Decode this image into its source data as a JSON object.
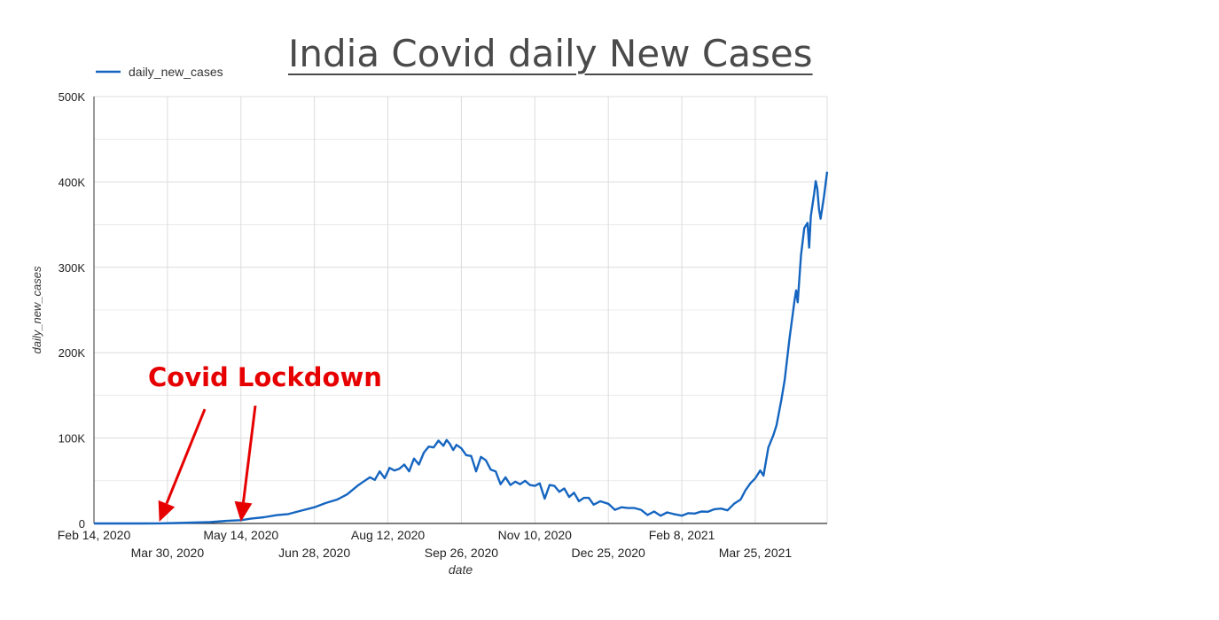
{
  "title": "India Covid daily New Cases",
  "chart_data": {
    "type": "line",
    "title": "India Covid daily New Cases",
    "xlabel": "date",
    "ylabel": "daily_new_cases",
    "x_start": "2020-02-14",
    "x_end": "2021-05-08",
    "ylim": [
      0,
      500000
    ],
    "y_ticks": [
      {
        "v": 0,
        "label": "0"
      },
      {
        "v": 100000,
        "label": "100K"
      },
      {
        "v": 200000,
        "label": "200K"
      },
      {
        "v": 300000,
        "label": "300K"
      },
      {
        "v": 400000,
        "label": "400K"
      },
      {
        "v": 500000,
        "label": "500K"
      }
    ],
    "x_ticks": [
      {
        "date": "2020-02-14",
        "label": "Feb 14, 2020",
        "row": 1
      },
      {
        "date": "2020-03-30",
        "label": "Mar 30, 2020",
        "row": 2
      },
      {
        "date": "2020-05-14",
        "label": "May 14, 2020",
        "row": 1
      },
      {
        "date": "2020-06-28",
        "label": "Jun 28, 2020",
        "row": 2
      },
      {
        "date": "2020-08-12",
        "label": "Aug 12, 2020",
        "row": 1
      },
      {
        "date": "2020-09-26",
        "label": "Sep 26, 2020",
        "row": 2
      },
      {
        "date": "2020-11-10",
        "label": "Nov 10, 2020",
        "row": 1
      },
      {
        "date": "2020-12-25",
        "label": "Dec 25, 2020",
        "row": 2
      },
      {
        "date": "2021-02-08",
        "label": "Feb 8, 2021",
        "row": 1
      },
      {
        "date": "2021-03-25",
        "label": "Mar 25, 2021",
        "row": 2
      }
    ],
    "grid": true,
    "legend": "top-left",
    "series": [
      {
        "name": "daily_new_cases",
        "color": "#1565c0",
        "points": [
          [
            "2020-02-14",
            0
          ],
          [
            "2020-03-01",
            0
          ],
          [
            "2020-03-15",
            50
          ],
          [
            "2020-03-25",
            100
          ],
          [
            "2020-04-05",
            500
          ],
          [
            "2020-04-15",
            1000
          ],
          [
            "2020-04-25",
            1600
          ],
          [
            "2020-05-05",
            3000
          ],
          [
            "2020-05-14",
            3800
          ],
          [
            "2020-05-20",
            5600
          ],
          [
            "2020-05-28",
            7300
          ],
          [
            "2020-06-05",
            9800
          ],
          [
            "2020-06-12",
            11000
          ],
          [
            "2020-06-20",
            15000
          ],
          [
            "2020-06-28",
            19000
          ],
          [
            "2020-07-05",
            24000
          ],
          [
            "2020-07-12",
            28000
          ],
          [
            "2020-07-18",
            34000
          ],
          [
            "2020-07-25",
            45000
          ],
          [
            "2020-07-28",
            49000
          ],
          [
            "2020-08-01",
            54000
          ],
          [
            "2020-08-04",
            51000
          ],
          [
            "2020-08-07",
            61000
          ],
          [
            "2020-08-10",
            53000
          ],
          [
            "2020-08-13",
            65000
          ],
          [
            "2020-08-16",
            62000
          ],
          [
            "2020-08-19",
            64000
          ],
          [
            "2020-08-22",
            69000
          ],
          [
            "2020-08-25",
            61000
          ],
          [
            "2020-08-28",
            76000
          ],
          [
            "2020-08-31",
            69000
          ],
          [
            "2020-09-03",
            83000
          ],
          [
            "2020-09-06",
            90000
          ],
          [
            "2020-09-09",
            89000
          ],
          [
            "2020-09-12",
            97000
          ],
          [
            "2020-09-15",
            91000
          ],
          [
            "2020-09-17",
            97800
          ],
          [
            "2020-09-19",
            93000
          ],
          [
            "2020-09-21",
            86000
          ],
          [
            "2020-09-23",
            92000
          ],
          [
            "2020-09-26",
            88000
          ],
          [
            "2020-09-29",
            80000
          ],
          [
            "2020-10-02",
            79000
          ],
          [
            "2020-10-05",
            61000
          ],
          [
            "2020-10-08",
            78000
          ],
          [
            "2020-10-11",
            74000
          ],
          [
            "2020-10-14",
            63000
          ],
          [
            "2020-10-17",
            61000
          ],
          [
            "2020-10-20",
            46000
          ],
          [
            "2020-10-23",
            54000
          ],
          [
            "2020-10-26",
            45000
          ],
          [
            "2020-10-29",
            49000
          ],
          [
            "2020-11-01",
            46000
          ],
          [
            "2020-11-04",
            50000
          ],
          [
            "2020-11-07",
            45000
          ],
          [
            "2020-11-10",
            44000
          ],
          [
            "2020-11-13",
            47000
          ],
          [
            "2020-11-16",
            29000
          ],
          [
            "2020-11-19",
            45000
          ],
          [
            "2020-11-22",
            44000
          ],
          [
            "2020-11-25",
            37000
          ],
          [
            "2020-11-28",
            41000
          ],
          [
            "2020-12-01",
            31000
          ],
          [
            "2020-12-04",
            36000
          ],
          [
            "2020-12-07",
            26000
          ],
          [
            "2020-12-10",
            30000
          ],
          [
            "2020-12-13",
            30000
          ],
          [
            "2020-12-16",
            22000
          ],
          [
            "2020-12-20",
            26000
          ],
          [
            "2020-12-25",
            23000
          ],
          [
            "2020-12-29",
            16000
          ],
          [
            "2021-01-02",
            19000
          ],
          [
            "2021-01-06",
            18000
          ],
          [
            "2021-01-10",
            18000
          ],
          [
            "2021-01-14",
            16000
          ],
          [
            "2021-01-18",
            10000
          ],
          [
            "2021-01-22",
            14000
          ],
          [
            "2021-01-26",
            9000
          ],
          [
            "2021-01-30",
            13000
          ],
          [
            "2021-02-03",
            11000
          ],
          [
            "2021-02-08",
            9100
          ],
          [
            "2021-02-12",
            12000
          ],
          [
            "2021-02-16",
            11600
          ],
          [
            "2021-02-20",
            14000
          ],
          [
            "2021-02-24",
            13700
          ],
          [
            "2021-02-28",
            16700
          ],
          [
            "2021-03-04",
            17400
          ],
          [
            "2021-03-08",
            15400
          ],
          [
            "2021-03-12",
            23000
          ],
          [
            "2021-03-16",
            28000
          ],
          [
            "2021-03-19",
            39000
          ],
          [
            "2021-03-22",
            47000
          ],
          [
            "2021-03-25",
            53000
          ],
          [
            "2021-03-28",
            62000
          ],
          [
            "2021-03-30",
            56000
          ],
          [
            "2021-04-02",
            89000
          ],
          [
            "2021-04-05",
            103000
          ],
          [
            "2021-04-07",
            115000
          ],
          [
            "2021-04-10",
            145000
          ],
          [
            "2021-04-12",
            168000
          ],
          [
            "2021-04-15",
            217000
          ],
          [
            "2021-04-18",
            261000
          ],
          [
            "2021-04-19",
            273000
          ],
          [
            "2021-04-20",
            259000
          ],
          [
            "2021-04-22",
            314000
          ],
          [
            "2021-04-24",
            346000
          ],
          [
            "2021-04-26",
            352000
          ],
          [
            "2021-04-27",
            323000
          ],
          [
            "2021-04-28",
            360000
          ],
          [
            "2021-04-30",
            386000
          ],
          [
            "2021-05-01",
            401000
          ],
          [
            "2021-05-02",
            392000
          ],
          [
            "2021-05-03",
            368000
          ],
          [
            "2021-05-04",
            357000
          ],
          [
            "2021-05-06",
            382000
          ],
          [
            "2021-05-08",
            412000
          ]
        ]
      }
    ],
    "annotations": [
      {
        "text": "Covid Lockdown",
        "color": "#e60000",
        "arrow_targets": [
          "2020-03-25",
          "2020-05-14"
        ]
      }
    ]
  }
}
